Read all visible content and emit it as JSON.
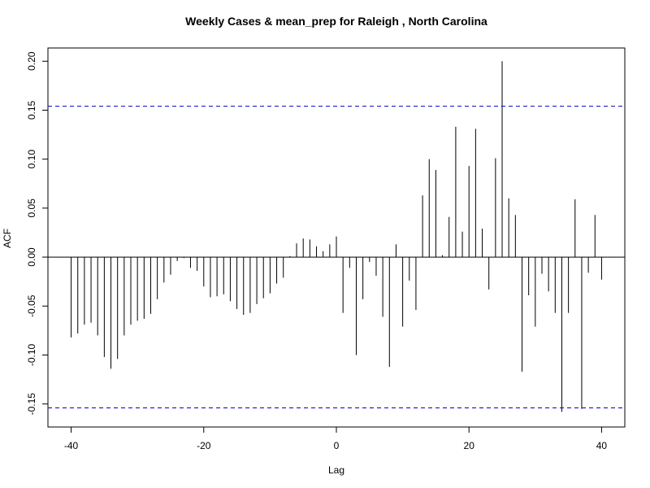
{
  "chart_data": {
    "type": "bar",
    "title": "Weekly Cases & mean_prep for Raleigh , North Carolina",
    "xlabel": "Lag",
    "ylabel": "ACF",
    "xlim": [
      -43.5,
      43.5
    ],
    "ylim": [
      -0.1735,
      0.2135
    ],
    "x_ticks": [
      -40,
      -20,
      0,
      20,
      40
    ],
    "x_tick_labels": [
      "-40",
      "-20",
      "0",
      "20",
      "40"
    ],
    "y_ticks": [
      -0.15,
      -0.1,
      -0.05,
      0.0,
      0.05,
      0.1,
      0.15,
      0.2
    ],
    "y_tick_labels": [
      "-0.15",
      "-0.10",
      "-0.05",
      "0.00",
      "0.05",
      "0.10",
      "0.15",
      "0.20"
    ],
    "confidence_bounds": [
      0.154,
      -0.154
    ],
    "confidence_color": "#0000cc",
    "bar_color": "#000000",
    "lags": [
      -40,
      -39,
      -38,
      -37,
      -36,
      -35,
      -34,
      -33,
      -32,
      -31,
      -30,
      -29,
      -28,
      -27,
      -26,
      -25,
      -24,
      -23,
      -22,
      -21,
      -20,
      -19,
      -18,
      -17,
      -16,
      -15,
      -14,
      -13,
      -12,
      -11,
      -10,
      -9,
      -8,
      -7,
      -6,
      -5,
      -4,
      -3,
      -2,
      -1,
      0,
      1,
      2,
      3,
      4,
      5,
      6,
      7,
      8,
      9,
      10,
      11,
      12,
      13,
      14,
      15,
      16,
      17,
      18,
      19,
      20,
      21,
      22,
      23,
      24,
      25,
      26,
      27,
      28,
      29,
      30,
      31,
      32,
      33,
      34,
      35,
      36,
      37,
      38,
      39,
      40
    ],
    "values": [
      -0.082,
      -0.078,
      -0.069,
      -0.067,
      -0.08,
      -0.102,
      -0.114,
      -0.104,
      -0.08,
      -0.069,
      -0.065,
      -0.063,
      -0.058,
      -0.043,
      -0.026,
      -0.018,
      -0.004,
      -0.001,
      -0.011,
      -0.014,
      -0.03,
      -0.041,
      -0.04,
      -0.038,
      -0.045,
      -0.053,
      -0.059,
      -0.057,
      -0.048,
      -0.042,
      -0.037,
      -0.027,
      -0.021,
      0.001,
      0.014,
      0.019,
      0.018,
      0.011,
      0.006,
      0.013,
      0.021,
      -0.057,
      -0.011,
      -0.1,
      -0.043,
      -0.005,
      -0.019,
      -0.061,
      -0.112,
      0.013,
      -0.071,
      -0.024,
      -0.054,
      0.063,
      0.1,
      0.089,
      0.002,
      0.041,
      0.133,
      0.026,
      0.093,
      0.131,
      0.029,
      -0.033,
      0.101,
      0.2,
      0.06,
      0.043,
      -0.117,
      -0.039,
      -0.071,
      -0.017,
      -0.035,
      -0.057,
      -0.158,
      -0.057,
      0.059,
      -0.155,
      -0.016,
      0.043,
      -0.023
    ]
  }
}
